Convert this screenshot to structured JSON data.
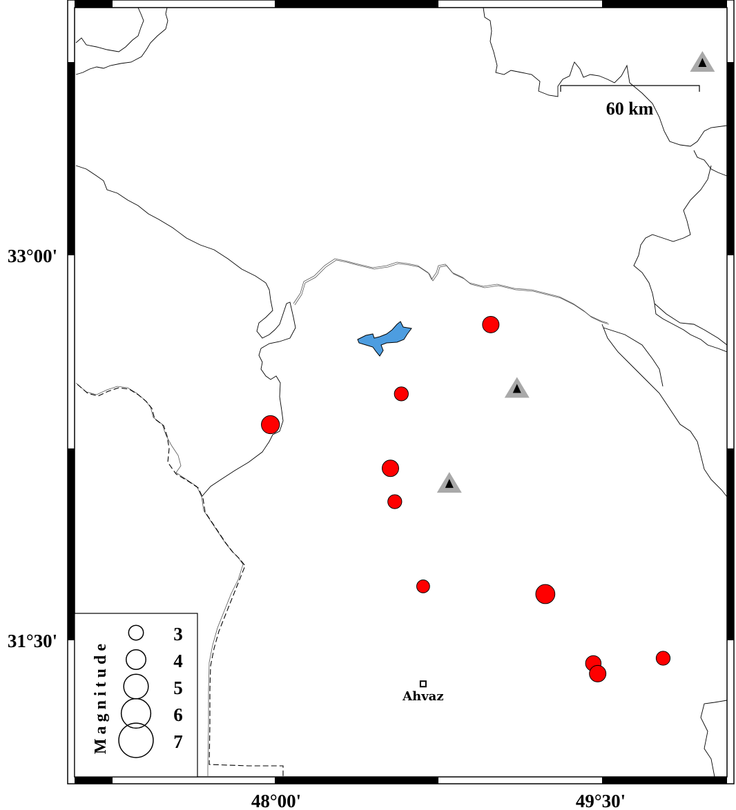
{
  "map": {
    "extent": {
      "lon_min": 47.08,
      "lon_max": 50.07,
      "lat_min": 30.97,
      "lat_max": 33.97
    },
    "lon_ticks": [
      {
        "value": 48.0,
        "label": "48°00'"
      },
      {
        "value": 49.5,
        "label": "49°30'"
      }
    ],
    "lat_ticks": [
      {
        "value": 33.0,
        "label": "33°00'"
      },
      {
        "value": 31.5,
        "label": "31°30'"
      }
    ],
    "scale_bar": {
      "label": "60 km"
    },
    "colors": {
      "event": "#ff0000",
      "lake": "#4d9de0",
      "station_outer": "#a9a9a9",
      "station_inner": "#000000"
    },
    "events": [
      {
        "lon": 48.99,
        "lat": 32.73,
        "mag": 3.2
      },
      {
        "lon": 48.58,
        "lat": 32.46,
        "mag": 2.7
      },
      {
        "lon": 47.98,
        "lat": 32.34,
        "mag": 3.5
      },
      {
        "lon": 48.53,
        "lat": 32.17,
        "mag": 3.2
      },
      {
        "lon": 48.55,
        "lat": 32.04,
        "mag": 2.7
      },
      {
        "lon": 48.68,
        "lat": 31.71,
        "mag": 2.5
      },
      {
        "lon": 49.24,
        "lat": 31.68,
        "mag": 3.7
      },
      {
        "lon": 49.46,
        "lat": 31.41,
        "mag": 3.0
      },
      {
        "lon": 49.48,
        "lat": 31.37,
        "mag": 3.2
      },
      {
        "lon": 49.78,
        "lat": 31.43,
        "mag": 2.7
      }
    ],
    "stations": [
      {
        "lon": 49.96,
        "lat": 33.75
      },
      {
        "lon": 49.11,
        "lat": 32.48
      },
      {
        "lon": 48.8,
        "lat": 32.11
      }
    ],
    "city": {
      "name": "Ahvaz",
      "lon": 48.68,
      "lat": 31.33
    }
  },
  "legend": {
    "title": "Magnitude",
    "items": [
      {
        "mag": 3,
        "label": "3"
      },
      {
        "mag": 4,
        "label": "4"
      },
      {
        "mag": 5,
        "label": "5"
      },
      {
        "mag": 6,
        "label": "6"
      },
      {
        "mag": 7,
        "label": "7"
      }
    ]
  }
}
